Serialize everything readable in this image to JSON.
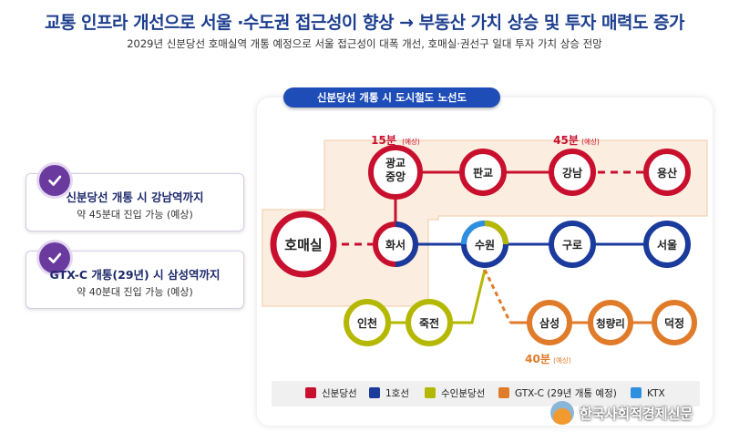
{
  "title": "교통 인프라 개선으로 서울 ·수도권 접근성이 향상 → 부동산 가치 상승 및 투자 매력도 증가",
  "subtitle": "2029년 신분당선 호매실역 개통 예정으로 서울 접근성이 대폭 개선, 호매실·권선구 일대 투자 가치 상승 전망",
  "cards": [
    {
      "title": "신분당선 개통 시 강남역까지",
      "desc": "약 45분대 진입 가능 (예상)"
    },
    {
      "title": "GTX-C 개통(29년) 시 삼성역까지",
      "desc": "약 40분대 진입 가능 (예상)"
    }
  ],
  "map": {
    "header": "신분당선 개통 시 도시철도 노선도",
    "stations": {
      "homaesil": "호매실",
      "hwaseo": "화서",
      "gwanggyo": "광교 중앙",
      "pangyo": "판교",
      "gangnam": "강남",
      "yongsan": "용산",
      "suwon": "수원",
      "guro": "구로",
      "seoul": "서울",
      "incheon": "인천",
      "jukjeon": "죽전",
      "samseong": "삼성",
      "cheongnyangni": "청량리",
      "deokjeong": "덕정"
    },
    "time_labels": {
      "gwanggyo": "15분",
      "gangnam": "45분",
      "samseong": "40분",
      "note": "(예상)"
    },
    "legend": [
      {
        "label": "신분당선",
        "color": "#c8102e"
      },
      {
        "label": "1호선",
        "color": "#1a3a9c"
      },
      {
        "label": "수인분당선",
        "color": "#b5b800"
      },
      {
        "label": "GTX-C (29년 개통 예정)",
        "color": "#e07b2a"
      },
      {
        "label": "KTX",
        "color": "#2f8fe0"
      }
    ],
    "colors": {
      "shinbundang": "#c8102e",
      "line1": "#1a3a9c",
      "suin": "#b5b800",
      "gtxc": "#e07b2a",
      "ktx": "#2f8fe0",
      "zone": "#fbeee0"
    }
  },
  "logo": {
    "name": "한국사회적경제신문"
  }
}
